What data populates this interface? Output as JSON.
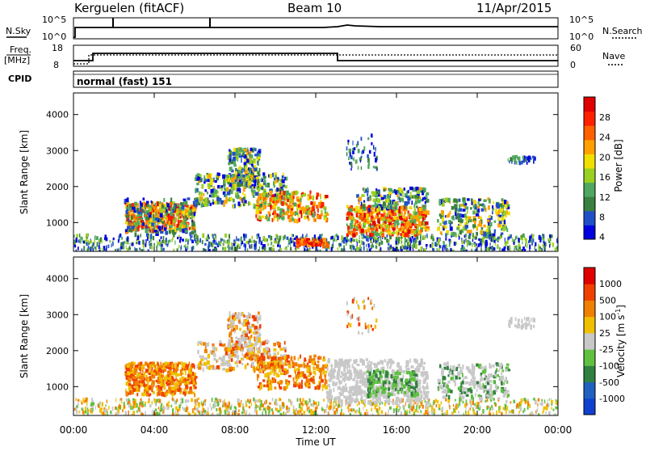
{
  "header": {
    "title": "Kerguelen (fitACF)",
    "beam": "Beam 10",
    "date": "11/Apr/2015"
  },
  "strips": {
    "nsky_label": "N.Sky",
    "nsky_ticks": [
      "10^5",
      "10^0"
    ],
    "nsearch_label": "N.Search",
    "nsearch_ticks": [
      "10^5",
      "10^0"
    ],
    "freq_label": "Freq.",
    "freq_unit": "[MHz]",
    "freq_ticks": [
      "18",
      "8"
    ],
    "nave_label": "Nave",
    "nave_ticks": [
      "60",
      "0"
    ],
    "cpid_label": "CPID",
    "cpid_value": "normal (fast) 151"
  },
  "chart_data": [
    {
      "type": "heatmap",
      "name": "power",
      "ylabel": "Slant Range [km]",
      "yticks": [
        "1000",
        "2000",
        "3000",
        "4000"
      ],
      "ylim": [
        200,
        4600
      ],
      "xlim": [
        "00:00",
        "24:00"
      ],
      "colorbar_label": "Power [dB]",
      "colorbar_ticks": [
        "28",
        "24",
        "20",
        "16",
        "12",
        "8",
        "4"
      ],
      "colors": [
        "#0000e0",
        "#2050c8",
        "#3a8040",
        "#50a860",
        "#9ad020",
        "#f0e000",
        "#ffa000",
        "#ff6000",
        "#ff2000",
        "#e00000"
      ]
    },
    {
      "type": "heatmap",
      "name": "velocity",
      "ylabel": "Slant Range [km]",
      "yticks": [
        "1000",
        "2000",
        "3000",
        "4000"
      ],
      "ylim": [
        200,
        4600
      ],
      "xlim": [
        "00:00",
        "24:00"
      ],
      "xticks": [
        "00:00",
        "04:00",
        "08:00",
        "12:00",
        "16:00",
        "20:00",
        "00:00"
      ],
      "xlabel": "Time UT",
      "colorbar_label": "Velocity [m s^-1]",
      "colorbar_ticks": [
        "1000",
        "500",
        "100",
        "25",
        "-25",
        "-100",
        "-500",
        "-1000"
      ],
      "colors": [
        "#1040d0",
        "#2060c0",
        "#308040",
        "#60c040",
        "#c8c8c8",
        "#f0c000",
        "#f08000",
        "#f04000",
        "#e00000"
      ]
    }
  ]
}
